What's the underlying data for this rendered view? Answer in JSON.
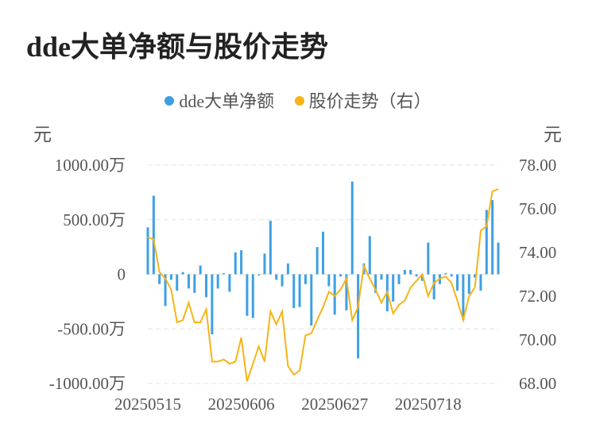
{
  "title": "dde大单净额与股价走势",
  "colors": {
    "bar": "#3ea0e4",
    "line": "#f5b417",
    "grid": "#e3e3e3",
    "text": "#555555"
  },
  "chart_data": {
    "type": "bar+line",
    "title": "dde大单净额与股价走势",
    "left_axis": {
      "unit": "元",
      "min": -1000,
      "max": 1000,
      "ticks": [
        "1000.00万",
        "500.00万",
        "0",
        "-500.00万",
        "-1000.00万"
      ]
    },
    "right_axis": {
      "unit": "元",
      "min": 68,
      "max": 78,
      "ticks": [
        "78.00",
        "76.00",
        "74.00",
        "72.00",
        "70.00",
        "68.00"
      ]
    },
    "x_ticks": [
      {
        "index": 0,
        "label": "20250515"
      },
      {
        "index": 16,
        "label": "20250606"
      },
      {
        "index": 32,
        "label": "20250627"
      },
      {
        "index": 48,
        "label": "20250718"
      }
    ],
    "legend": {
      "position": "top-center",
      "items": [
        "dde大单净额",
        "股价走势（右）"
      ]
    },
    "grid": true,
    "series": [
      {
        "name": "dde大单净额",
        "type": "bar",
        "axis": "left",
        "values": [
          430,
          720,
          -90,
          -290,
          -50,
          -150,
          20,
          -130,
          -170,
          80,
          -210,
          -550,
          -130,
          10,
          -160,
          200,
          220,
          -380,
          -400,
          -10,
          190,
          490,
          -50,
          -110,
          100,
          -310,
          -300,
          -90,
          -470,
          250,
          390,
          -110,
          -370,
          -20,
          -330,
          850,
          -770,
          100,
          350,
          -170,
          -50,
          -340,
          -250,
          -90,
          40,
          40,
          -20,
          -60,
          290,
          -230,
          -90,
          10,
          -20,
          -150,
          -420,
          -180,
          -30,
          -150,
          590,
          680,
          290
        ]
      },
      {
        "name": "股价走势（右）",
        "type": "line",
        "axis": "right",
        "values": [
          74.7,
          74.6,
          73.1,
          72.8,
          72.3,
          70.8,
          70.9,
          71.7,
          70.8,
          70.8,
          71.4,
          69.0,
          69.0,
          69.1,
          68.9,
          69.0,
          70.1,
          68.1,
          68.9,
          69.7,
          69.0,
          71.3,
          70.7,
          71.3,
          68.8,
          68.4,
          68.6,
          70.2,
          70.3,
          70.9,
          71.5,
          72.2,
          72.0,
          72.3,
          72.8,
          70.9,
          71.5,
          73.4,
          72.8,
          72.3,
          71.7,
          72.2,
          71.2,
          71.6,
          71.8,
          72.4,
          72.7,
          73.0,
          72.0,
          72.6,
          72.8,
          72.9,
          72.6,
          71.8,
          70.9,
          72.0,
          72.4,
          75.0,
          75.2,
          76.8,
          76.9
        ]
      }
    ]
  }
}
